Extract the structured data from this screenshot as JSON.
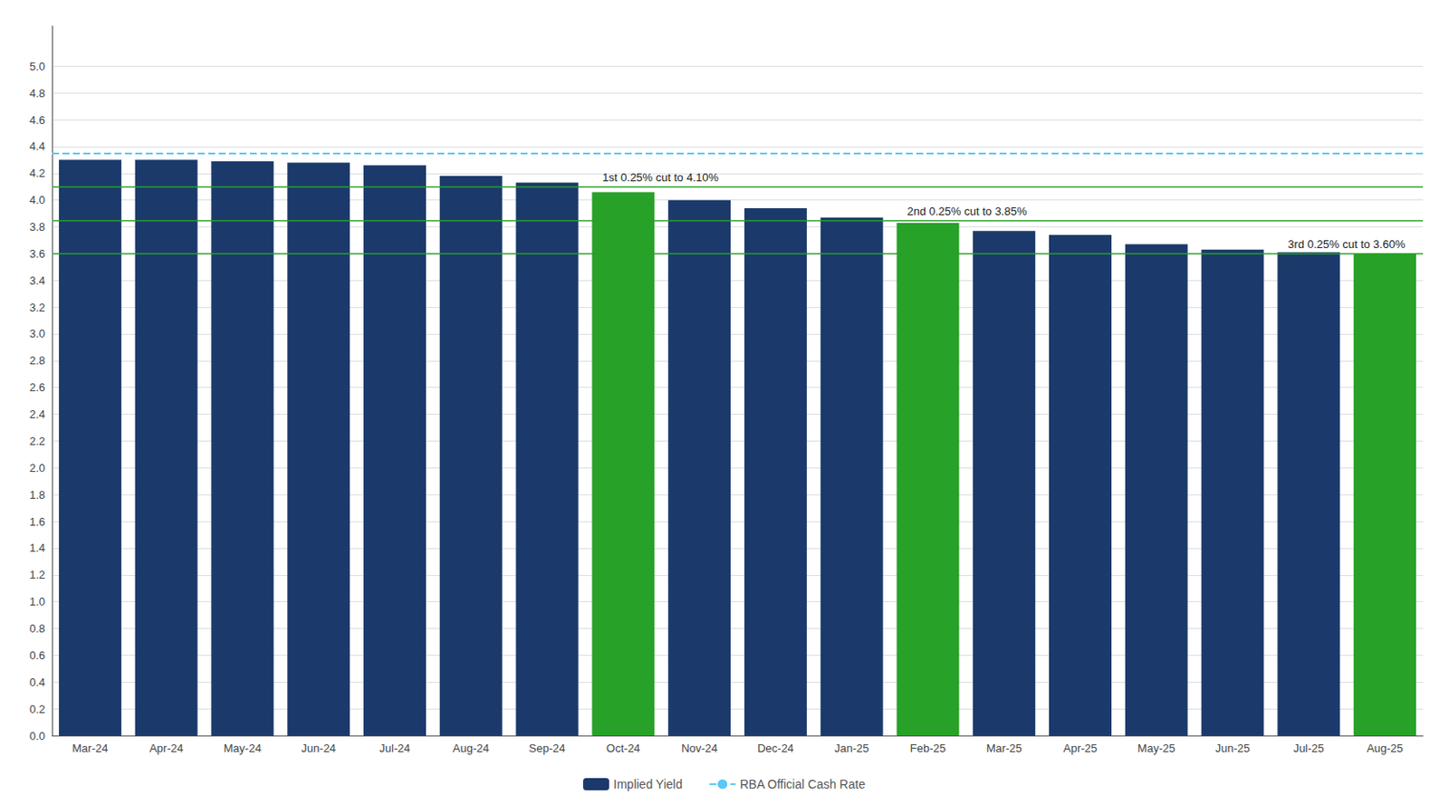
{
  "chart_data": {
    "type": "bar",
    "categories": [
      "Mar-24",
      "Apr-24",
      "May-24",
      "Jun-24",
      "Jul-24",
      "Aug-24",
      "Sep-24",
      "Oct-24",
      "Nov-24",
      "Dec-24",
      "Jan-25",
      "Feb-25",
      "Mar-25",
      "Apr-25",
      "May-25",
      "Jun-25",
      "Jul-25",
      "Aug-25"
    ],
    "series": [
      {
        "name": "Implied Yield",
        "type": "bar",
        "color": "#1B3A6B",
        "colors": [
          "#1B3A6B",
          "#1B3A6B",
          "#1B3A6B",
          "#1B3A6B",
          "#1B3A6B",
          "#1B3A6B",
          "#1B3A6B",
          "#27A127",
          "#1B3A6B",
          "#1B3A6B",
          "#1B3A6B",
          "#27A127",
          "#1B3A6B",
          "#1B3A6B",
          "#1B3A6B",
          "#1B3A6B",
          "#1B3A6B",
          "#27A127"
        ],
        "values": [
          4.3,
          4.3,
          4.29,
          4.28,
          4.26,
          4.18,
          4.13,
          4.06,
          4.0,
          3.94,
          3.87,
          3.83,
          3.77,
          3.74,
          3.67,
          3.63,
          3.61,
          3.6
        ]
      }
    ],
    "reference_lines": [
      {
        "name": "RBA Official Cash Rate",
        "value": 4.35,
        "color": "#5BC8F5",
        "line_style": "dashed"
      },
      {
        "value": 4.1,
        "color": "#27A127",
        "line_style": "solid"
      },
      {
        "value": 3.85,
        "color": "#27A127",
        "line_style": "solid"
      },
      {
        "value": 3.6,
        "color": "#27A127",
        "line_style": "solid"
      }
    ],
    "annotations": [
      {
        "text": "1st 0.25% cut to 4.10%",
        "x": "Oct-24",
        "y": 4.1
      },
      {
        "text": "2nd 0.25% cut to 3.85%",
        "x": "Feb-25",
        "y": 3.85
      },
      {
        "text": "3rd 0.25% cut to 3.60%",
        "x": "Jul-25",
        "y": 3.6
      }
    ],
    "ylim": [
      0.0,
      5.3
    ],
    "yticks": [
      {
        "value": 0.0,
        "label": "0.0"
      },
      0.2,
      0.4,
      0.6,
      0.8,
      {
        "value": 1.0,
        "label": "1.0"
      },
      1.2,
      1.4,
      1.6,
      1.8,
      {
        "value": 2.0,
        "label": "2.0"
      },
      2.2,
      2.4,
      2.6,
      2.8,
      {
        "value": 3.0,
        "label": "3.0"
      },
      3.2,
      3.4,
      3.6,
      3.8,
      {
        "value": 4.0,
        "label": "4.0"
      },
      4.2,
      4.4,
      4.6,
      4.8,
      {
        "value": 5.0,
        "label": "5.0"
      }
    ],
    "grid": true,
    "legend": "bottom"
  }
}
